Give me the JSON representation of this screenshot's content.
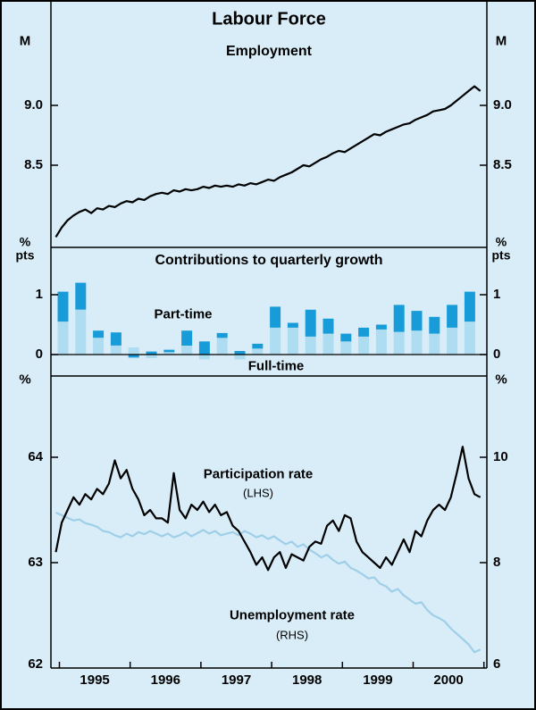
{
  "title": "Labour Force",
  "colors": {
    "background": "#d9edf8",
    "dark_blue": "#189cd9",
    "light_blue": "#aedcf0",
    "unemployment_line": "#9fcfe8",
    "line_black": "#000000"
  },
  "x_axis": {
    "years": [
      "1995",
      "1996",
      "1997",
      "1998",
      "1999",
      "2000"
    ]
  },
  "chart_data": [
    {
      "type": "line",
      "title": "Employment",
      "unit_left": "M",
      "unit_right": "M",
      "ylim": [
        7.8,
        9.3
      ],
      "yticks": [
        {
          "value": 8.5,
          "label": "8.5"
        },
        {
          "value": 9.0,
          "label": "9.0"
        }
      ],
      "series": [
        {
          "name": "Employment",
          "x_start": 1994.45,
          "x_step": 0.08333,
          "values": [
            7.9,
            7.98,
            8.04,
            8.08,
            8.11,
            8.13,
            8.1,
            8.14,
            8.13,
            8.16,
            8.15,
            8.18,
            8.2,
            8.19,
            8.22,
            8.21,
            8.24,
            8.26,
            8.27,
            8.26,
            8.29,
            8.28,
            8.3,
            8.29,
            8.3,
            8.32,
            8.31,
            8.33,
            8.32,
            8.33,
            8.32,
            8.34,
            8.33,
            8.35,
            8.34,
            8.36,
            8.38,
            8.37,
            8.4,
            8.42,
            8.44,
            8.47,
            8.5,
            8.49,
            8.52,
            8.55,
            8.57,
            8.6,
            8.62,
            8.61,
            8.64,
            8.67,
            8.7,
            8.73,
            8.76,
            8.75,
            8.78,
            8.8,
            8.82,
            8.84,
            8.85,
            8.88,
            8.9,
            8.92,
            8.95,
            8.96,
            8.97,
            9.0,
            9.04,
            9.08,
            9.12,
            9.16,
            9.12
          ]
        }
      ]
    },
    {
      "type": "bar",
      "title": "Contributions to quarterly growth",
      "unit_left": "% pts",
      "unit_right": "% pts",
      "ylim": [
        -0.4,
        1.8
      ],
      "yticks": [
        {
          "value": 0,
          "label": "0"
        },
        {
          "value": 1,
          "label": "1"
        }
      ],
      "x_start": 1994.55,
      "x_step": 0.25,
      "series": [
        {
          "name": "Full-time",
          "color_key": "light_blue",
          "values": [
            0.55,
            0.75,
            0.28,
            0.15,
            0.12,
            -0.06,
            0.04,
            0.15,
            -0.08,
            0.28,
            -0.08,
            0.1,
            0.45,
            0.45,
            0.3,
            0.35,
            0.22,
            0.3,
            0.42,
            0.38,
            0.4,
            0.35,
            0.45,
            0.55
          ]
        },
        {
          "name": "Part-time",
          "color_key": "dark_blue",
          "values": [
            0.5,
            0.45,
            0.12,
            0.22,
            -0.05,
            0.05,
            0.04,
            0.25,
            0.22,
            0.08,
            0.06,
            0.08,
            0.35,
            0.08,
            0.45,
            0.25,
            0.13,
            0.15,
            0.08,
            0.45,
            0.33,
            0.28,
            0.38,
            0.5
          ]
        }
      ]
    },
    {
      "type": "line",
      "title": "",
      "unit_left": "%",
      "unit_right": "%",
      "ylim_left": [
        62,
        64.3
      ],
      "ylim_right": [
        6,
        10.6
      ],
      "yticks_left": [
        {
          "value": 62,
          "label": "62"
        },
        {
          "value": 63,
          "label": "63"
        },
        {
          "value": 64,
          "label": "64"
        }
      ],
      "yticks_right": [
        {
          "value": 6,
          "label": "6"
        },
        {
          "value": 8,
          "label": "8"
        },
        {
          "value": 10,
          "label": "10"
        }
      ],
      "series": [
        {
          "name": "Participation rate",
          "axis_label": "(LHS)",
          "axis": "left",
          "x_start": 1994.45,
          "x_step": 0.08333,
          "values": [
            63.1,
            63.38,
            63.5,
            63.62,
            63.55,
            63.65,
            63.6,
            63.7,
            63.65,
            63.75,
            63.97,
            63.8,
            63.88,
            63.7,
            63.6,
            63.45,
            63.5,
            63.42,
            63.42,
            63.38,
            63.85,
            63.5,
            63.42,
            63.55,
            63.5,
            63.58,
            63.48,
            63.55,
            63.45,
            63.48,
            63.35,
            63.3,
            63.2,
            63.1,
            62.98,
            63.05,
            62.93,
            63.05,
            63.1,
            62.95,
            63.08,
            63.05,
            63.02,
            63.15,
            63.2,
            63.18,
            63.35,
            63.4,
            63.3,
            63.45,
            63.42,
            63.2,
            63.1,
            63.05,
            63.0,
            62.95,
            63.05,
            62.98,
            63.1,
            63.22,
            63.1,
            63.3,
            63.25,
            63.4,
            63.5,
            63.55,
            63.5,
            63.62,
            63.85,
            64.1,
            63.8,
            63.65,
            63.62
          ]
        },
        {
          "name": "Unemployment rate",
          "axis_label": "(RHS)",
          "axis": "right",
          "x_start": 1994.45,
          "x_step": 0.08333,
          "values": [
            8.95,
            8.9,
            8.85,
            8.8,
            8.82,
            8.75,
            8.72,
            8.68,
            8.6,
            8.58,
            8.52,
            8.48,
            8.55,
            8.5,
            8.58,
            8.54,
            8.6,
            8.55,
            8.5,
            8.55,
            8.48,
            8.52,
            8.58,
            8.5,
            8.56,
            8.62,
            8.55,
            8.6,
            8.52,
            8.55,
            8.58,
            8.52,
            8.6,
            8.55,
            8.48,
            8.52,
            8.45,
            8.5,
            8.42,
            8.35,
            8.4,
            8.3,
            8.35,
            8.25,
            8.18,
            8.1,
            8.15,
            8.05,
            7.98,
            8.02,
            7.9,
            7.85,
            7.78,
            7.7,
            7.72,
            7.6,
            7.55,
            7.45,
            7.5,
            7.38,
            7.3,
            7.22,
            7.25,
            7.1,
            7.0,
            6.95,
            6.88,
            6.75,
            6.65,
            6.55,
            6.45,
            6.3,
            6.35
          ]
        }
      ]
    }
  ]
}
